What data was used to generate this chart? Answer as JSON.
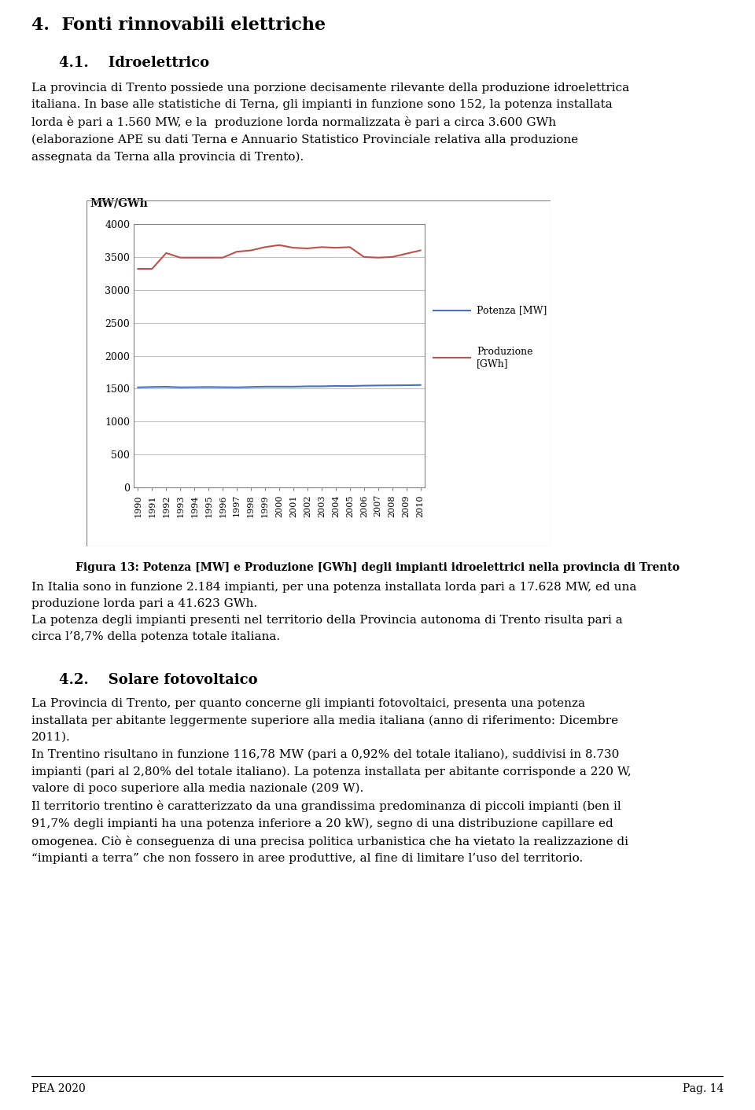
{
  "years": [
    1990,
    1991,
    1992,
    1993,
    1994,
    1995,
    1996,
    1997,
    1998,
    1999,
    2000,
    2001,
    2002,
    2003,
    2004,
    2005,
    2006,
    2007,
    2008,
    2009,
    2010
  ],
  "potenza_mw": [
    1520,
    1525,
    1528,
    1520,
    1522,
    1525,
    1522,
    1520,
    1525,
    1530,
    1530,
    1530,
    1535,
    1535,
    1540,
    1540,
    1545,
    1548,
    1550,
    1552,
    1555
  ],
  "produzione_gwh": [
    3320,
    3320,
    3560,
    3490,
    3490,
    3490,
    3490,
    3580,
    3600,
    3650,
    3680,
    3640,
    3630,
    3650,
    3640,
    3650,
    3500,
    3490,
    3500,
    3550,
    3600
  ],
  "potenza_color": "#4472C4",
  "produzione_color": "#C0504D",
  "ylabel": "MW/GWh",
  "ylim_min": 0,
  "ylim_max": 4000,
  "yticks": [
    0,
    500,
    1000,
    1500,
    2000,
    2500,
    3000,
    3500,
    4000
  ],
  "legend_potenza": "Potenza [MW]",
  "legend_produzione": "Produzione\n[GWh]",
  "title_text_1": "4.  Fonti rinnovabili elettriche",
  "subtitle_text": "4.1.    Idroelettrico",
  "body_text_1": "La provincia di Trento possiede una porzione decisamente rilevante della produzione idroelettrica\nitaliana. In base alle statistiche di Terna, gli impianti in funzione sono 152, la potenza installata\nlorda è pari a 1.560 MW, e la  produzione lorda normalizzata è pari a circa 3.600 GWh\n(elaborazione APE su dati Terna e Annuario Statistico Provinciale relativa alla produzione\nassegnata da Terna alla provincia di Trento).",
  "caption_text": "Figura 13: Potenza [MW] e Produzione [GWh] degli impianti idroelettrici nella provincia di Trento",
  "body_text_2": "In Italia sono in funzione 2.184 impianti, per una potenza installata lorda pari a 17.628 MW, ed una\nproduzione lorda pari a 41.623 GWh.\nLa potenza degli impianti presenti nel territorio della Provincia autonoma di Trento risulta pari a\ncirca l’8,7% della potenza totale italiana.",
  "section_42": "4.2.    Solare fotovoltaico",
  "body_text_3": "La Provincia di Trento, per quanto concerne gli impianti fotovoltaici, presenta una potenza\ninstallata per abitante leggermente superiore alla media italiana (anno di riferimento: Dicembre\n2011).\nIn Trentino risultano in funzione 116,78 MW (pari a 0,92% del totale italiano), suddivisi in 8.730\nimpianti (pari al 2,80% del totale italiano). La potenza installata per abitante corrisponde a 220 W,\nvalore di poco superiore alla media nazionale (209 W).\nIl territorio trentino è caratterizzato da una grandissima predominanza di piccoli impianti (ben il\n91,7% degli impianti ha una potenza inferiore a 20 kW), segno di una distribuzione capillare ed\nomogenea. Ciò è conseguenza di una precisa politica urbanistica che ha vietato la realizzazione di\n“impianti a terra” che non fossero in aree produttive, al fine di limitare l’uso del territorio.",
  "footer_left": "PEA 2020",
  "footer_right": "Pag. 14",
  "background_color": "#ffffff",
  "chart_bg": "#ffffff",
  "grid_color": "#C0C0C0",
  "text_color": "#000000",
  "chart_linewidth": 1.5
}
